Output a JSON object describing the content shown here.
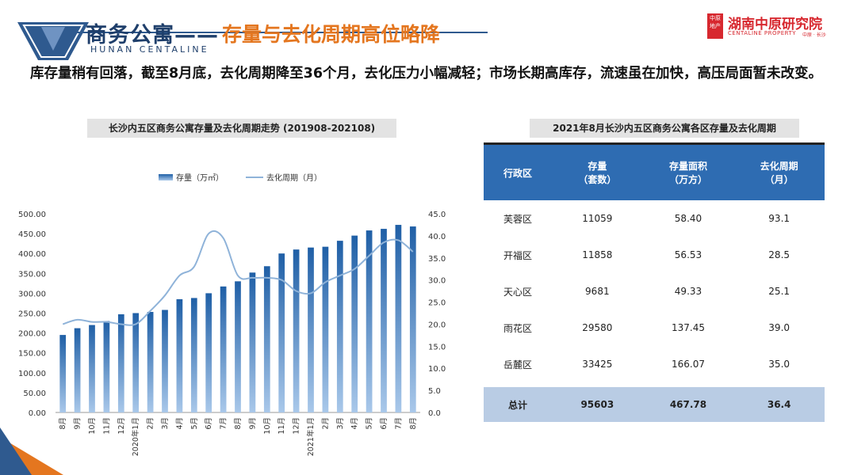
{
  "header": {
    "title_main": "商务公寓——",
    "title_sub": "存量与去化周期高位略降",
    "title_en": "HUNAN CENTALINE",
    "logo_cn": "湖南中原研究院",
    "logo_en": "CENTALINE PROPERTY",
    "logo_sub": "中原 · 长沙",
    "logo_mark": "中原地产"
  },
  "intro": "库存量稍有回落，截至8月底，去化周期降至36个月，去化压力小幅减轻；市场长期高库存，流速虽在加快，高压局面暂未改变。",
  "colors": {
    "accent_blue": "#2e6cb2",
    "orange": "#e4761f",
    "navy": "#1f3f6b",
    "line": "#8fb3d9",
    "brand_red": "#d7282f"
  },
  "chart_data": {
    "type": "bar",
    "title": "长沙内五区商务公寓存量及去化周期走势 (201908-202108)",
    "legend": [
      "存量（万㎡）",
      "去化周期（月）"
    ],
    "legend_position": "top-center",
    "categories": [
      "8月",
      "9月",
      "10月",
      "11月",
      "12月",
      "2020年1月",
      "2月",
      "3月",
      "4月",
      "5月",
      "6月",
      "7月",
      "8月",
      "9月",
      "10月",
      "11月",
      "12月",
      "2021年1月",
      "2月",
      "3月",
      "4月",
      "5月",
      "6月",
      "7月",
      "8月"
    ],
    "series": [
      {
        "name": "存量（万㎡）",
        "type": "bar",
        "axis": "left",
        "values": [
          195,
          212,
          220,
          230,
          247,
          250,
          253,
          258,
          285,
          288,
          300,
          317,
          330,
          352,
          368,
          400,
          410,
          415,
          417,
          432,
          445,
          458,
          462,
          472,
          468
        ]
      },
      {
        "name": "去化周期（月）",
        "type": "line",
        "axis": "right",
        "values": [
          20.0,
          21.0,
          20.5,
          20.5,
          20.0,
          20.0,
          23.0,
          26.5,
          31.0,
          33.0,
          40.5,
          39.5,
          31.0,
          30.5,
          30.5,
          30.0,
          27.5,
          27.0,
          29.5,
          31.0,
          32.5,
          35.5,
          38.5,
          39.0,
          36.4
        ]
      }
    ],
    "y_left": {
      "min": 0,
      "max": 500,
      "step": 50,
      "ticks": [
        "0.00",
        "50.00",
        "100.00",
        "150.00",
        "200.00",
        "250.00",
        "300.00",
        "350.00",
        "400.00",
        "450.00",
        "500.00"
      ]
    },
    "y_right": {
      "min": 0,
      "max": 45,
      "step": 5,
      "ticks": [
        "0.0",
        "5.0",
        "10.0",
        "15.0",
        "20.0",
        "25.0",
        "30.0",
        "35.0",
        "40.0",
        "45.0"
      ]
    }
  },
  "table": {
    "caption": "2021年8月长沙内五区商务公寓各区存量及去化周期",
    "headers": [
      "行政区",
      "存量\n（套数）",
      "存量面积\n（万方）",
      "去化周期\n（月）"
    ],
    "rows": [
      [
        "芙蓉区",
        "11059",
        "58.40",
        "93.1"
      ],
      [
        "开福区",
        "11858",
        "56.53",
        "28.5"
      ],
      [
        "天心区",
        "9681",
        "49.33",
        "25.1"
      ],
      [
        "雨花区",
        "29580",
        "137.45",
        "39.0"
      ],
      [
        "岳麓区",
        "33425",
        "166.07",
        "35.0"
      ]
    ],
    "total": [
      "总计",
      "95603",
      "467.78",
      "36.4"
    ]
  }
}
